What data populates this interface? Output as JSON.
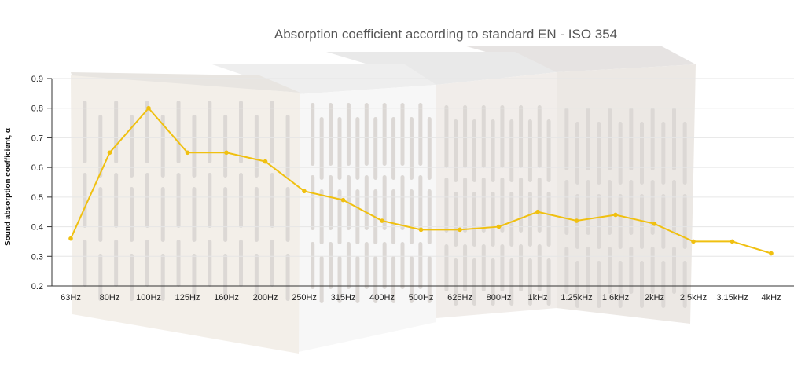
{
  "chart_data": {
    "type": "line",
    "title": "Absorption coefficient according to standard EN - ISO 354",
    "xlabel": "",
    "ylabel": "Sound absorption coefficient, α",
    "categories": [
      "63Hz",
      "80Hz",
      "100Hz",
      "125Hz",
      "160Hz",
      "200Hz",
      "250Hz",
      "315Hz",
      "400Hz",
      "500Hz",
      "625Hz",
      "800Hz",
      "1kHz",
      "1.25kHz",
      "1.6kHz",
      "2kHz",
      "2.5kHz",
      "3.15kHz",
      "4kHz"
    ],
    "series": [
      {
        "values": [
          0.36,
          0.65,
          0.8,
          0.65,
          0.65,
          0.62,
          0.52,
          0.49,
          0.42,
          0.39,
          0.39,
          0.4,
          0.45,
          0.42,
          0.44,
          0.41,
          0.35,
          0.35,
          0.31
        ]
      }
    ],
    "ylim": [
      0.2,
      0.9
    ],
    "yticks": [
      "0.2",
      "0.3",
      "0.4",
      "0.5",
      "0.6",
      "0.7",
      "0.8",
      "0.9"
    ],
    "grid": true,
    "colors": {
      "line": "#f0c010",
      "grid": "#e6e6e6",
      "axis": "#333333"
    },
    "background": "acoustic panel product photos"
  }
}
